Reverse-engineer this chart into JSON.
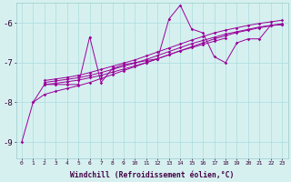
{
  "xlabel": "Windchill (Refroidissement éolien,°C)",
  "bg_color": "#d6f0f0",
  "line_color": "#990099",
  "grid_color": "#aadddd",
  "xlim": [
    -0.5,
    23.5
  ],
  "ylim": [
    -9.4,
    -5.5
  ],
  "yticks": [
    -9,
    -8,
    -7,
    -6
  ],
  "xticks": [
    0,
    1,
    2,
    3,
    4,
    5,
    6,
    7,
    8,
    9,
    10,
    11,
    12,
    13,
    14,
    15,
    16,
    17,
    18,
    19,
    20,
    21,
    22,
    23
  ],
  "series": {
    "zigzag": {
      "x": [
        0,
        1,
        2,
        3,
        4,
        5,
        6,
        7,
        8,
        9,
        10,
        11,
        12,
        13,
        14,
        15,
        16,
        17,
        18,
        19,
        20,
        21,
        22,
        23
      ],
      "y": [
        -9.0,
        -8.0,
        -7.55,
        -7.55,
        -7.55,
        -7.55,
        -6.35,
        -7.5,
        -7.15,
        -7.05,
        -7.0,
        -6.95,
        -6.9,
        -5.9,
        -5.55,
        -6.15,
        -6.25,
        -6.85,
        -7.0,
        -6.5,
        -6.4,
        -6.4,
        -6.05,
        -6.05
      ]
    },
    "line1": {
      "x": [
        2,
        3,
        4,
        5,
        6,
        7,
        8,
        9,
        10,
        11,
        12,
        13,
        14,
        15,
        16,
        17,
        18
      ],
      "y": [
        -7.55,
        -7.52,
        -7.48,
        -7.44,
        -7.38,
        -7.32,
        -7.24,
        -7.16,
        -7.08,
        -7.0,
        -6.9,
        -6.8,
        -6.7,
        -6.62,
        -6.54,
        -6.46,
        -6.38
      ]
    },
    "line2": {
      "x": [
        2,
        3,
        4,
        5,
        6,
        7,
        8,
        9,
        10,
        11,
        12,
        13,
        14,
        15,
        16,
        17,
        18,
        19,
        20,
        21,
        22,
        23
      ],
      "y": [
        -7.5,
        -7.46,
        -7.42,
        -7.38,
        -7.32,
        -7.25,
        -7.17,
        -7.09,
        -7.01,
        -6.92,
        -6.82,
        -6.72,
        -6.62,
        -6.52,
        -6.44,
        -6.36,
        -6.28,
        -6.22,
        -6.16,
        -6.1,
        -6.06,
        -6.02
      ]
    },
    "line3": {
      "x": [
        2,
        3,
        4,
        5,
        6,
        7,
        8,
        9,
        10,
        11,
        12,
        13,
        14,
        15,
        16,
        17,
        18,
        19,
        20,
        21,
        22,
        23
      ],
      "y": [
        -7.45,
        -7.41,
        -7.37,
        -7.32,
        -7.25,
        -7.17,
        -7.09,
        -7.01,
        -6.93,
        -6.83,
        -6.73,
        -6.63,
        -6.53,
        -6.43,
        -6.34,
        -6.25,
        -6.18,
        -6.12,
        -6.06,
        -6.01,
        -5.97,
        -5.93
      ]
    },
    "line4_long": {
      "x": [
        1,
        2,
        3,
        4,
        5,
        6,
        7,
        8,
        9,
        10,
        11,
        12,
        13,
        14,
        15,
        16,
        17,
        18,
        19,
        20,
        21,
        22,
        23
      ],
      "y": [
        -8.0,
        -7.8,
        -7.72,
        -7.65,
        -7.58,
        -7.5,
        -7.4,
        -7.3,
        -7.2,
        -7.1,
        -7.0,
        -6.9,
        -6.8,
        -6.7,
        -6.6,
        -6.5,
        -6.4,
        -6.32,
        -6.24,
        -6.18,
        -6.12,
        -6.07,
        -6.03
      ]
    }
  }
}
